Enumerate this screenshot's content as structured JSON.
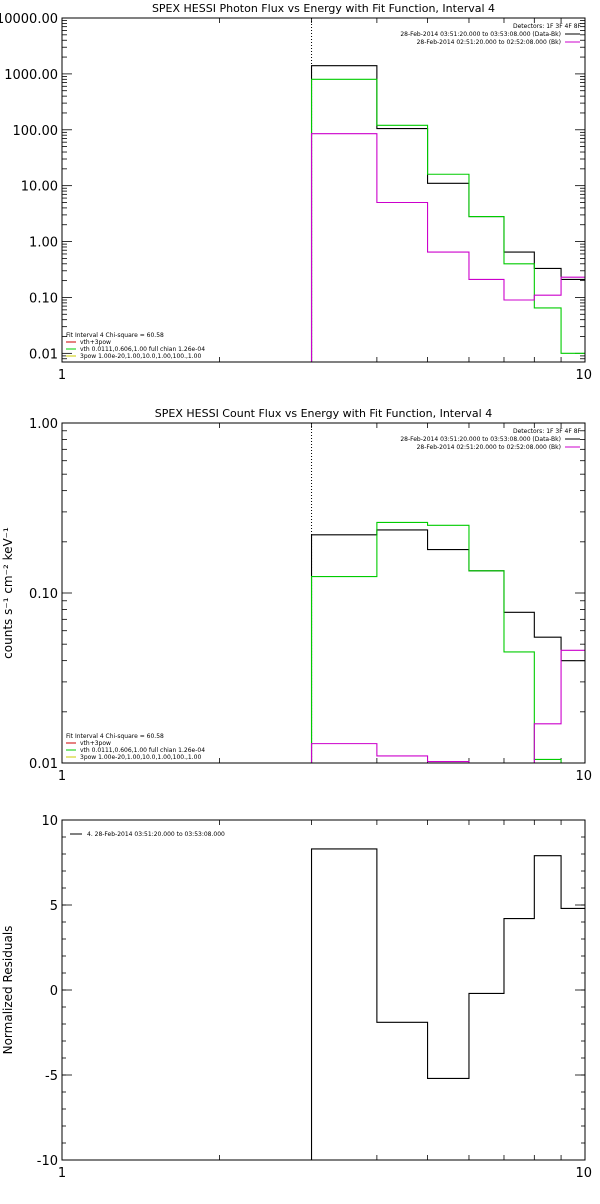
{
  "chart_data": [
    {
      "type": "line",
      "title": "SPEX HESSI Photon Flux vs Energy with Fit Function, Interval 4",
      "xlabel": "",
      "ylabel": "",
      "x_scale": "log",
      "y_scale": "log",
      "xlim": [
        1,
        10
      ],
      "ylim": [
        0.007,
        10000
      ],
      "x_ticks": [
        {
          "v": 1,
          "label": "1"
        },
        {
          "v": 10,
          "label": "10"
        }
      ],
      "y_ticks": [
        {
          "v": 0.01,
          "label": "0.01"
        },
        {
          "v": 0.1,
          "label": "0.10"
        },
        {
          "v": 1,
          "label": "1.00"
        },
        {
          "v": 10,
          "label": "10.00"
        },
        {
          "v": 100,
          "label": "100.00"
        },
        {
          "v": 1000,
          "label": "1000.00"
        },
        {
          "v": 10000,
          "label": "10000.00"
        }
      ],
      "vline_x": 3,
      "legend_tr": [
        {
          "text": "Detectors: 1F 3F 4F 8F",
          "color": "#000000",
          "line": false
        },
        {
          "text": "28-Feb-2014 03:51:20.000 to 03:53:08.000 (Data-Bk)",
          "color": "#000000",
          "line": true
        },
        {
          "text": "28-Feb-2014 02:51:20.000 to 02:52:08.000 (Bk)",
          "color": "#cc00cc",
          "line": true
        }
      ],
      "legend_bl": [
        {
          "text": "Fit Interval 4   Chi-square = 60.58",
          "color": "#000000",
          "line": false
        },
        {
          "text": "vth+3pow",
          "color": "#cc0000",
          "line": true
        },
        {
          "text": "vth 0.0111,0.606,1.00  full chian 1.26e-04",
          "color": "#00cc00",
          "line": true
        },
        {
          "text": "3pow 1.00e-20,1.00,10.0,1.00,100.,1.00",
          "color": "#cccc00",
          "line": true
        }
      ],
      "series": [
        {
          "color": "#000000",
          "edges": [
            3,
            4,
            5,
            6,
            7,
            8,
            9,
            10
          ],
          "values": [
            1400,
            105,
            11,
            2.8,
            0.65,
            0.33,
            0.21
          ]
        },
        {
          "color": "#00cc00",
          "edges": [
            3,
            4,
            5,
            6,
            7,
            8,
            9,
            10
          ],
          "values": [
            800,
            120,
            16,
            2.8,
            0.4,
            0.065,
            0.01
          ]
        },
        {
          "color": "#cc00cc",
          "edges": [
            3,
            4,
            5,
            6,
            7,
            8,
            9,
            10
          ],
          "values": [
            85,
            5,
            0.65,
            0.21,
            0.09,
            0.11,
            0.23
          ]
        }
      ]
    },
    {
      "type": "line",
      "title": "SPEX HESSI Count Flux vs Energy with Fit Function, Interval 4",
      "xlabel": "",
      "ylabel": "counts s⁻¹ cm⁻² keV⁻¹",
      "x_scale": "log",
      "y_scale": "log",
      "xlim": [
        1,
        10
      ],
      "ylim": [
        0.01,
        1.0
      ],
      "x_ticks": [
        {
          "v": 1,
          "label": "1"
        },
        {
          "v": 10,
          "label": "10"
        }
      ],
      "y_ticks": [
        {
          "v": 0.01,
          "label": "0.01"
        },
        {
          "v": 0.1,
          "label": "0.10"
        },
        {
          "v": 1,
          "label": "1.00"
        }
      ],
      "vline_x": 3,
      "legend_tr": [
        {
          "text": "Detectors: 1F 3F 4F 8F",
          "color": "#000000",
          "line": false
        },
        {
          "text": "28-Feb-2014 03:51:20.000 to 03:53:08.000 (Data-Bk)",
          "color": "#000000",
          "line": true
        },
        {
          "text": "28-Feb-2014 02:51:20.000 to 02:52:08.000 (Bk)",
          "color": "#cc00cc",
          "line": true
        }
      ],
      "legend_bl": [
        {
          "text": "Fit Interval 4   Chi-square = 60.58",
          "color": "#000000",
          "line": false
        },
        {
          "text": "vth+3pow",
          "color": "#cc0000",
          "line": true
        },
        {
          "text": "vth 0.0111,0.606,1.00  full chian 1.26e-04",
          "color": "#00cc00",
          "line": true
        },
        {
          "text": "3pow 1.00e-20,1.00,10.0,1.00,100.,1.00",
          "color": "#cccc00",
          "line": true
        }
      ],
      "series": [
        {
          "color": "#000000",
          "edges": [
            3,
            4,
            5,
            6,
            7,
            8,
            9,
            10
          ],
          "values": [
            0.22,
            0.235,
            0.18,
            0.135,
            0.077,
            0.055,
            0.04
          ]
        },
        {
          "color": "#00cc00",
          "edges": [
            3,
            4,
            5,
            6,
            7,
            8,
            9,
            10
          ],
          "values": [
            0.125,
            0.26,
            0.25,
            0.135,
            0.045,
            0.0105,
            0.008
          ]
        },
        {
          "color": "#cc00cc",
          "edges": [
            3,
            4,
            5,
            6,
            7,
            8,
            9,
            10
          ],
          "values": [
            0.013,
            0.011,
            0.0102,
            0.0099,
            0.0098,
            0.017,
            0.046
          ]
        }
      ]
    },
    {
      "type": "line",
      "title": "",
      "xlabel": "",
      "ylabel": "Normalized Residuals",
      "x_scale": "log",
      "y_scale": "linear",
      "xlim": [
        1,
        10
      ],
      "ylim": [
        -10,
        10
      ],
      "x_ticks": [
        {
          "v": 1,
          "label": "1"
        },
        {
          "v": 10,
          "label": "10"
        }
      ],
      "y_ticks": [
        {
          "v": -10,
          "label": "-10"
        },
        {
          "v": -5,
          "label": "-5"
        },
        {
          "v": 0,
          "label": "0"
        },
        {
          "v": 5,
          "label": "5"
        },
        {
          "v": 10,
          "label": "10"
        }
      ],
      "legend_tl": [
        {
          "text": "4. 28-Feb-2014 03:51:20.000 to 03:53:08.000",
          "color": "#000000",
          "line": true
        }
      ],
      "series": [
        {
          "color": "#000000",
          "edges": [
            3,
            4,
            5,
            6,
            7,
            8,
            9,
            10
          ],
          "values": [
            8.3,
            -1.9,
            -5.2,
            -0.2,
            4.2,
            7.9,
            4.8
          ],
          "drop_to_bottom": true
        }
      ]
    }
  ]
}
